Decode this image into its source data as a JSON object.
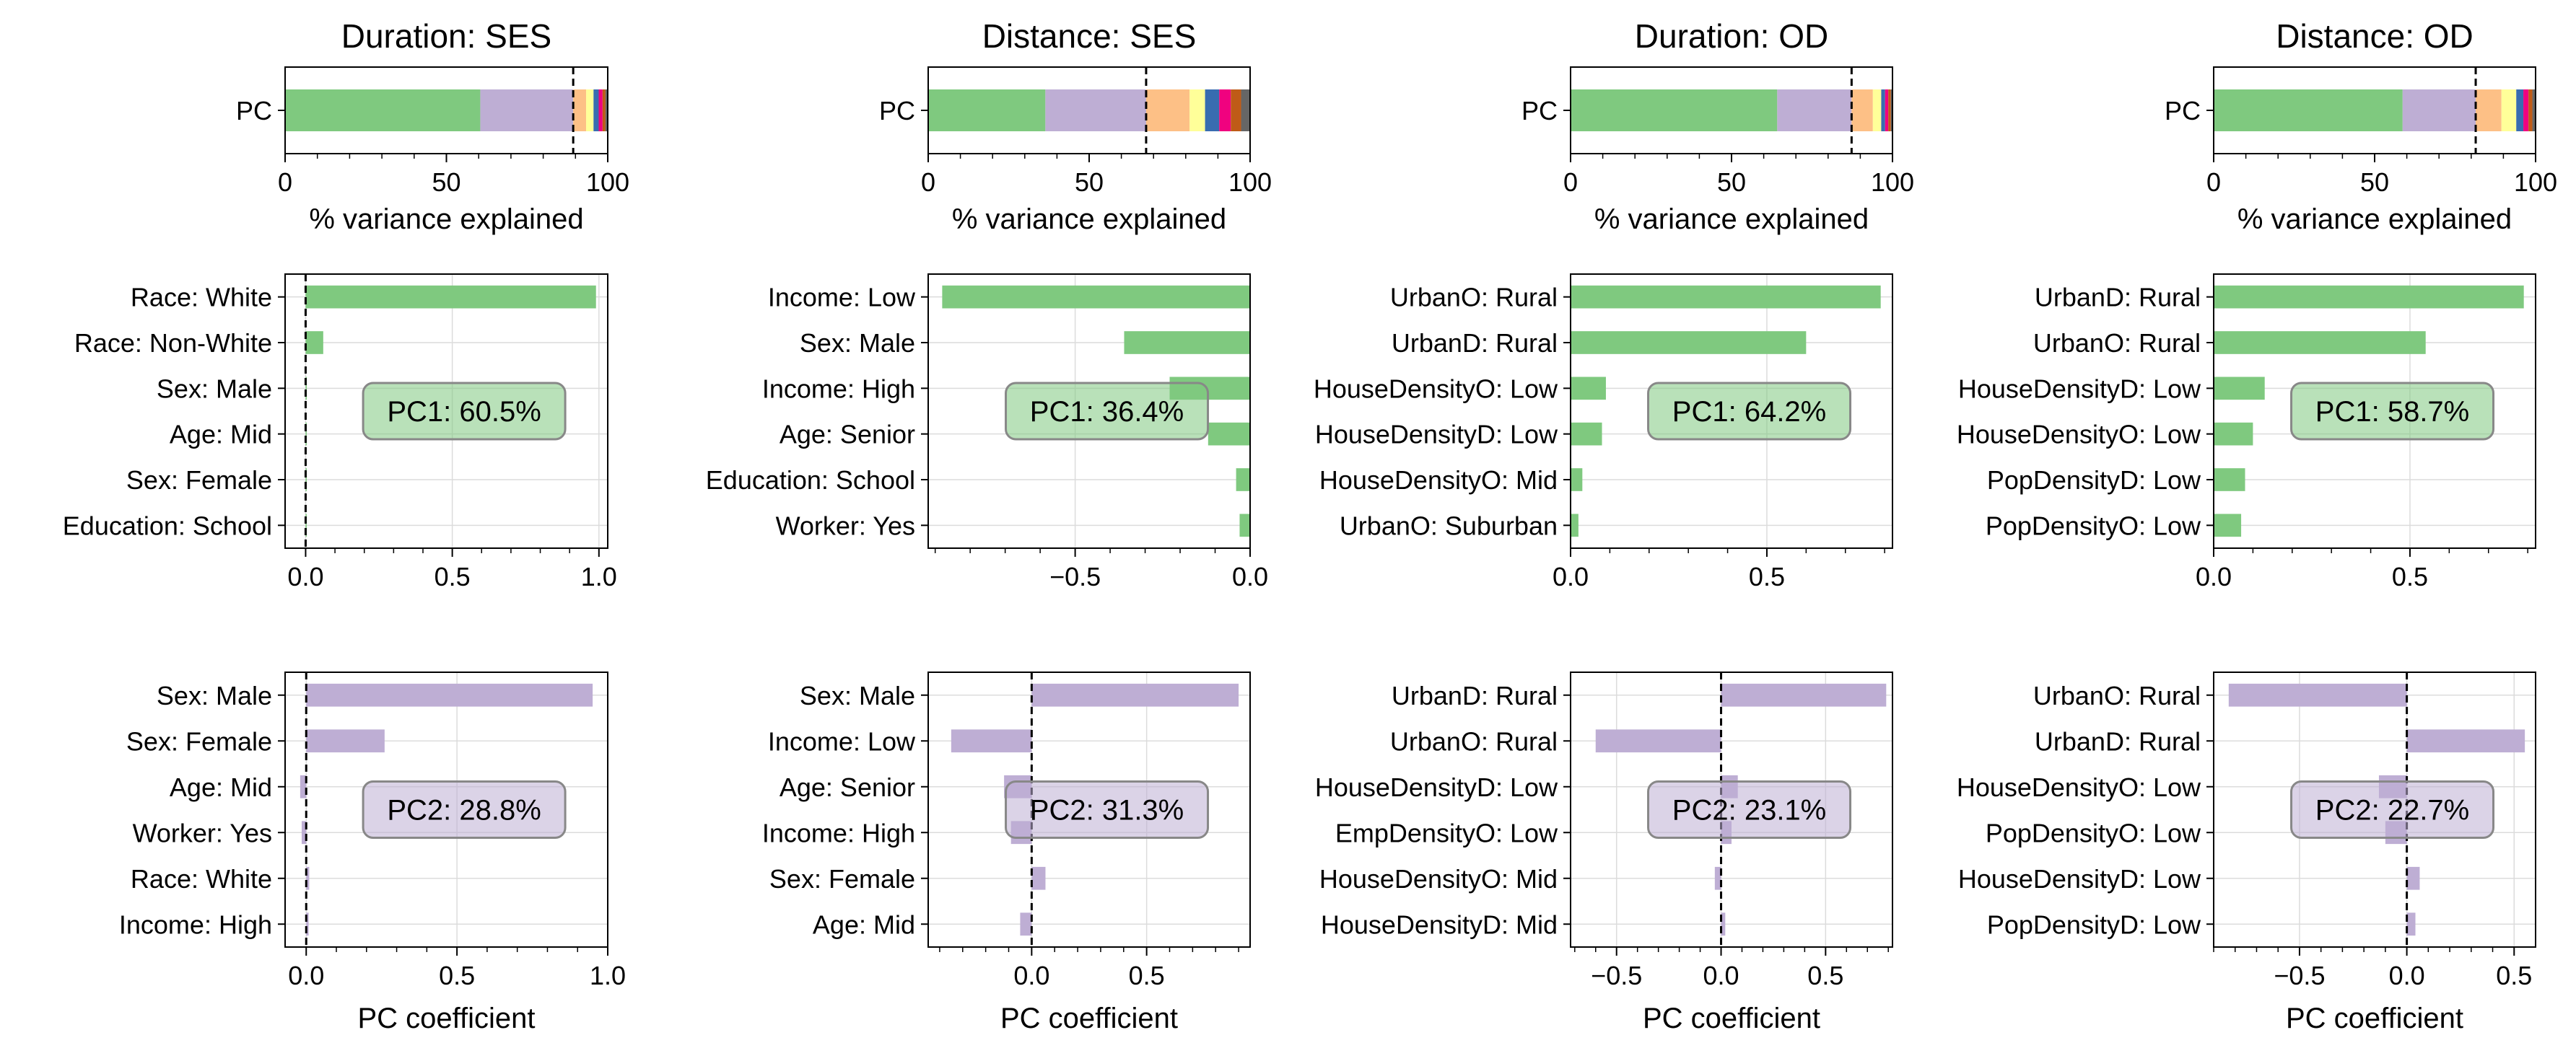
{
  "figure": {
    "colors": {
      "pc1": "#7fc97f",
      "pc2": "#beaed4",
      "stack": [
        "#7fc97f",
        "#beaed4",
        "#fdc086",
        "#ffff99",
        "#386cb0",
        "#f0027f",
        "#bf5b17",
        "#666666"
      ]
    },
    "xlabel_variance": "% variance explained",
    "xlabel_coef": "PC coefficient",
    "row_label": "PC"
  },
  "chart_data": [
    {
      "type": "bar",
      "stacked": true,
      "title": "Duration: SES",
      "ylabel": "PC",
      "xlabel": "% variance explained",
      "xlim": [
        0,
        100
      ],
      "xticks": [
        0,
        50,
        100
      ],
      "series": [
        {
          "value": 60.5
        },
        {
          "value": 28.8
        },
        {
          "value": 4.0
        },
        {
          "value": 2.3
        },
        {
          "value": 1.6
        },
        {
          "value": 1.2
        },
        {
          "value": 0.9
        },
        {
          "value": 0.7
        }
      ],
      "cumulative_threshold": 89.3
    },
    {
      "type": "bar",
      "stacked": true,
      "title": "Distance: SES",
      "ylabel": "PC",
      "xlabel": "% variance explained",
      "xlim": [
        0,
        100
      ],
      "xticks": [
        0,
        50,
        100
      ],
      "series": [
        {
          "value": 36.4
        },
        {
          "value": 31.3
        },
        {
          "value": 13.5
        },
        {
          "value": 4.8
        },
        {
          "value": 4.4
        },
        {
          "value": 3.6
        },
        {
          "value": 3.2
        },
        {
          "value": 2.8
        }
      ],
      "cumulative_threshold": 67.7
    },
    {
      "type": "bar",
      "stacked": true,
      "title": "Duration: OD",
      "ylabel": "PC",
      "xlabel": "% variance explained",
      "xlim": [
        0,
        100
      ],
      "xticks": [
        0,
        50,
        100
      ],
      "series": [
        {
          "value": 64.2
        },
        {
          "value": 23.1
        },
        {
          "value": 6.6
        },
        {
          "value": 2.6
        },
        {
          "value": 1.2
        },
        {
          "value": 1.0
        },
        {
          "value": 0.8
        },
        {
          "value": 0.5
        }
      ],
      "cumulative_threshold": 87.3
    },
    {
      "type": "bar",
      "stacked": true,
      "title": "Distance: OD",
      "ylabel": "PC",
      "xlabel": "% variance explained",
      "xlim": [
        0,
        100
      ],
      "xticks": [
        0,
        50,
        100
      ],
      "series": [
        {
          "value": 58.7
        },
        {
          "value": 22.7
        },
        {
          "value": 8.0
        },
        {
          "value": 4.6
        },
        {
          "value": 2.2
        },
        {
          "value": 1.6
        },
        {
          "value": 1.2
        },
        {
          "value": 1.0
        }
      ],
      "cumulative_threshold": 81.4
    },
    {
      "type": "bar",
      "orientation": "horizontal",
      "component": 1,
      "annotation": "PC1: 60.5%",
      "xlim": [
        -0.07,
        1.03
      ],
      "xticks": [
        0.0,
        0.5,
        1.0
      ],
      "xtick_labels": [
        "0.0",
        "0.5",
        "1.0"
      ],
      "categories": [
        "Race: White",
        "Race: Non-White",
        "Sex: Male",
        "Age: Mid",
        "Sex: Female",
        "Education: School"
      ],
      "values": [
        0.99,
        0.06,
        0.004,
        0.003,
        0.002,
        0.002
      ]
    },
    {
      "type": "bar",
      "orientation": "horizontal",
      "component": 1,
      "annotation": "PC1: 36.4%",
      "xlim": [
        -0.92,
        0.0
      ],
      "xticks": [
        -0.5,
        0.0
      ],
      "xtick_labels": [
        "−0.5",
        "0.0"
      ],
      "categories": [
        "Income: Low",
        "Sex: Male",
        "Income: High",
        "Age: Senior",
        "Education: School",
        "Worker: Yes"
      ],
      "values": [
        -0.88,
        -0.36,
        -0.23,
        -0.12,
        -0.04,
        -0.03
      ]
    },
    {
      "type": "bar",
      "orientation": "horizontal",
      "component": 1,
      "annotation": "PC1: 64.2%",
      "xlim": [
        0.0,
        0.82
      ],
      "xticks": [
        0.0,
        0.5
      ],
      "xtick_labels": [
        "0.0",
        "0.5"
      ],
      "categories": [
        "UrbanO: Rural",
        "UrbanD: Rural",
        "HouseDensityO: Low",
        "HouseDensityD: Low",
        "HouseDensityO: Mid",
        "UrbanO: Suburban"
      ],
      "values": [
        0.79,
        0.6,
        0.09,
        0.08,
        0.03,
        0.02
      ]
    },
    {
      "type": "bar",
      "orientation": "horizontal",
      "component": 1,
      "annotation": "PC1: 58.7%",
      "xlim": [
        0.0,
        0.82
      ],
      "xticks": [
        0.0,
        0.5
      ],
      "xtick_labels": [
        "0.0",
        "0.5"
      ],
      "categories": [
        "UrbanD: Rural",
        "UrbanO: Rural",
        "HouseDensityD: Low",
        "HouseDensityO: Low",
        "PopDensityD: Low",
        "PopDensityO: Low"
      ],
      "values": [
        0.79,
        0.54,
        0.13,
        0.1,
        0.08,
        0.07
      ]
    },
    {
      "type": "bar",
      "orientation": "horizontal",
      "component": 2,
      "annotation": "PC2: 28.8%",
      "xlabel": "PC coefficient",
      "xlim": [
        -0.07,
        1.0
      ],
      "xticks": [
        0.0,
        0.5,
        1.0
      ],
      "xtick_labels": [
        "0.0",
        "0.5",
        "1.0"
      ],
      "categories": [
        "Sex: Male",
        "Sex: Female",
        "Age: Mid",
        "Worker: Yes",
        "Race: White",
        "Income: High"
      ],
      "values": [
        0.95,
        0.26,
        -0.02,
        -0.015,
        0.01,
        0.008
      ]
    },
    {
      "type": "bar",
      "orientation": "horizontal",
      "component": 2,
      "annotation": "PC2: 31.3%",
      "xlabel": "PC coefficient",
      "xlim": [
        -0.45,
        0.95
      ],
      "xticks": [
        0.0,
        0.5
      ],
      "xtick_labels": [
        "0.0",
        "0.5"
      ],
      "categories": [
        "Sex: Male",
        "Income: Low",
        "Age: Senior",
        "Income: High",
        "Sex: Female",
        "Age: Mid"
      ],
      "values": [
        0.9,
        -0.35,
        -0.12,
        -0.09,
        0.06,
        -0.05
      ]
    },
    {
      "type": "bar",
      "orientation": "horizontal",
      "component": 2,
      "annotation": "PC2: 23.1%",
      "xlabel": "PC coefficient",
      "xlim": [
        -0.72,
        0.82
      ],
      "xticks": [
        -0.5,
        0.0,
        0.5
      ],
      "xtick_labels": [
        "−0.5",
        "0.0",
        "0.5"
      ],
      "categories": [
        "UrbanD: Rural",
        "UrbanO: Rural",
        "HouseDensityD: Low",
        "EmpDensityO: Low",
        "HouseDensityO: Mid",
        "HouseDensityD: Mid"
      ],
      "values": [
        0.79,
        -0.6,
        0.08,
        0.05,
        -0.03,
        0.02
      ]
    },
    {
      "type": "bar",
      "orientation": "horizontal",
      "component": 2,
      "annotation": "PC2: 22.7%",
      "xlabel": "PC coefficient",
      "xlim": [
        -0.9,
        0.6
      ],
      "xticks": [
        -0.5,
        0.0,
        0.5
      ],
      "xtick_labels": [
        "−0.5",
        "0.0",
        "0.5"
      ],
      "categories": [
        "UrbanO: Rural",
        "UrbanD: Rural",
        "HouseDensityO: Low",
        "PopDensityO: Low",
        "HouseDensityD: Low",
        "PopDensityD: Low"
      ],
      "values": [
        -0.83,
        0.55,
        -0.13,
        -0.1,
        0.06,
        0.04
      ]
    }
  ]
}
